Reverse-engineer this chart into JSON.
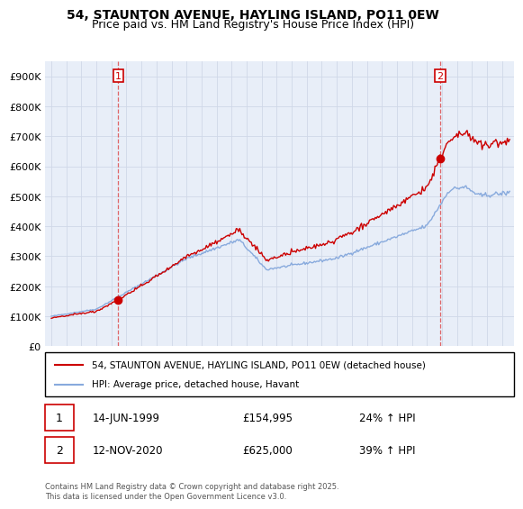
{
  "title": "54, STAUNTON AVENUE, HAYLING ISLAND, PO11 0EW",
  "subtitle": "Price paid vs. HM Land Registry's House Price Index (HPI)",
  "legend_line1": "54, STAUNTON AVENUE, HAYLING ISLAND, PO11 0EW (detached house)",
  "legend_line2": "HPI: Average price, detached house, Havant",
  "footnote": "Contains HM Land Registry data © Crown copyright and database right 2025.\nThis data is licensed under the Open Government Licence v3.0.",
  "sale1_date": "14-JUN-1999",
  "sale1_price": "£154,995",
  "sale1_hpi": "24% ↑ HPI",
  "sale2_date": "12-NOV-2020",
  "sale2_price": "£625,000",
  "sale2_hpi": "39% ↑ HPI",
  "red_color": "#cc0000",
  "blue_color": "#88aadd",
  "vline_color": "#dd4444",
  "grid_color": "#d0d8e8",
  "bg_color": "#ffffff",
  "plot_bg_color": "#e8eef8",
  "ylim_max": 950000,
  "yticks": [
    0,
    100000,
    200000,
    300000,
    400000,
    500000,
    600000,
    700000,
    800000,
    900000
  ],
  "ytick_labels": [
    "£0",
    "£100K",
    "£200K",
    "£300K",
    "£400K",
    "£500K",
    "£600K",
    "£700K",
    "£800K",
    "£900K"
  ],
  "sale1_x": 1999.45,
  "sale1_y": 154995,
  "sale2_x": 2020.87,
  "sale2_y": 625000,
  "xlim_min": 1994.6,
  "xlim_max": 2025.8
}
